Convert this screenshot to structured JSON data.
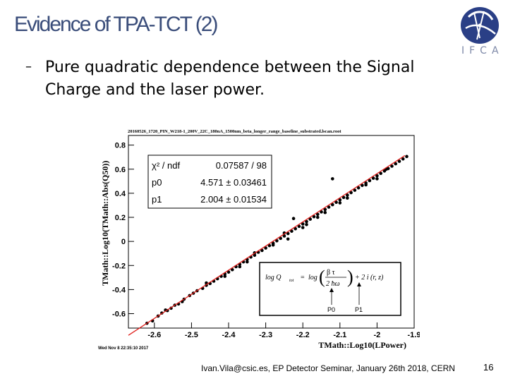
{
  "slide": {
    "title": "Evidence of TPA-TCT (2)",
    "bullet": "Pure quadratic dependence between the Signal Charge and the laser power.",
    "footer": "Ivan.Vila@csic.es, EP Detector Seminar, January 26th 2018, CERN",
    "page_number": "16",
    "logo_text": "IFCA"
  },
  "chart_data": {
    "type": "scatter",
    "title": "20160526_1720_PIN_W218-1_200V_22C_180nA_1500nm_beta_longer_range_baseline_substrated.lscan.root",
    "xlabel": "TMath::Log10(LPower)",
    "ylabel": "TMath::Log10(TMath::Abs(Q50))",
    "xlim": [
      -2.67,
      -1.9
    ],
    "ylim": [
      -0.72,
      0.88
    ],
    "xticks": [
      "-2.6",
      "-2.5",
      "-2.4",
      "-2.3",
      "-2.2",
      "-2.1",
      "-2",
      "-1.9"
    ],
    "yticks": [
      "-0.6",
      "-0.4",
      "-0.2",
      "0",
      "0.2",
      "0.4",
      "0.6",
      "0.8"
    ],
    "fit": {
      "p0": 4.571,
      "p1": 2.004
    },
    "stats": [
      {
        "label": "χ² / ndf",
        "value": "0.07587 / 98"
      },
      {
        "label": "p0",
        "value": "4.571 ± 0.03461"
      },
      {
        "label": "p1",
        "value": "2.004 ± 0.01534"
      }
    ],
    "date_stamp": "Wed Nov  8 22:35:10 2017",
    "formula": {
      "lhs": "log Q",
      "lhs_sub": "tot",
      "num": "β τ",
      "den": "2 ħω",
      "tail": "+ 2 i (r, z)",
      "label_p0": "P0",
      "label_p1": "P1"
    },
    "points": [
      [
        -2.62,
        -0.68
      ],
      [
        -2.605,
        -0.66
      ],
      [
        -2.59,
        -0.62
      ],
      [
        -2.58,
        -0.595
      ],
      [
        -2.565,
        -0.575
      ],
      [
        -2.555,
        -0.555
      ],
      [
        -2.545,
        -0.53
      ],
      [
        -2.535,
        -0.52
      ],
      [
        -2.525,
        -0.5
      ],
      [
        -2.505,
        -0.45
      ],
      [
        -2.495,
        -0.43
      ],
      [
        -2.485,
        -0.41
      ],
      [
        -2.47,
        -0.39
      ],
      [
        -2.46,
        -0.365
      ],
      [
        -2.45,
        -0.35
      ],
      [
        -2.44,
        -0.33
      ],
      [
        -2.43,
        -0.31
      ],
      [
        -2.42,
        -0.29
      ],
      [
        -2.41,
        -0.27
      ],
      [
        -2.4,
        -0.255
      ],
      [
        -2.39,
        -0.235
      ],
      [
        -2.38,
        -0.21
      ],
      [
        -2.37,
        -0.19
      ],
      [
        -2.36,
        -0.17
      ],
      [
        -2.35,
        -0.15
      ],
      [
        -2.34,
        -0.13
      ],
      [
        -2.33,
        -0.115
      ],
      [
        -2.32,
        -0.09
      ],
      [
        -2.31,
        -0.075
      ],
      [
        -2.3,
        -0.055
      ],
      [
        -2.29,
        -0.035
      ],
      [
        -2.28,
        -0.015
      ],
      [
        -2.27,
        0.005
      ],
      [
        -2.26,
        0.025
      ],
      [
        -2.25,
        0.045
      ],
      [
        -2.24,
        0.065
      ],
      [
        -2.23,
        0.085
      ],
      [
        -2.22,
        0.105
      ],
      [
        -2.21,
        0.125
      ],
      [
        -2.2,
        0.145
      ],
      [
        -2.19,
        0.165
      ],
      [
        -2.18,
        0.185
      ],
      [
        -2.17,
        0.205
      ],
      [
        -2.16,
        0.225
      ],
      [
        -2.15,
        0.245
      ],
      [
        -2.14,
        0.265
      ],
      [
        -2.13,
        0.285
      ],
      [
        -2.12,
        0.305
      ],
      [
        -2.11,
        0.325
      ],
      [
        -2.1,
        0.345
      ],
      [
        -2.09,
        0.365
      ],
      [
        -2.08,
        0.385
      ],
      [
        -2.07,
        0.405
      ],
      [
        -2.06,
        0.425
      ],
      [
        -2.05,
        0.445
      ],
      [
        -2.04,
        0.465
      ],
      [
        -2.03,
        0.485
      ],
      [
        -2.02,
        0.505
      ],
      [
        -2.01,
        0.525
      ],
      [
        -2.0,
        0.545
      ],
      [
        -1.99,
        0.565
      ],
      [
        -1.98,
        0.585
      ],
      [
        -1.97,
        0.605
      ],
      [
        -1.96,
        0.625
      ],
      [
        -1.95,
        0.645
      ],
      [
        -1.94,
        0.665
      ],
      [
        -1.93,
        0.685
      ],
      [
        -1.92,
        0.705
      ],
      [
        -2.46,
        -0.345
      ],
      [
        -2.37,
        -0.21
      ],
      [
        -2.25,
        0.07
      ],
      [
        -2.19,
        0.14
      ],
      [
        -2.2,
        0.115
      ],
      [
        -2.16,
        0.2
      ],
      [
        -2.08,
        0.36
      ],
      [
        -2.33,
        -0.095
      ],
      [
        -2.28,
        -0.03
      ],
      [
        -2.41,
        -0.29
      ],
      [
        -2.52,
        -0.48
      ],
      [
        -2.57,
        -0.57
      ],
      [
        -2.03,
        0.47
      ],
      [
        -2.0,
        0.52
      ],
      [
        -1.975,
        0.6
      ],
      [
        -2.1,
        0.32
      ],
      [
        -2.12,
        0.52
      ],
      [
        -2.24,
        0.02
      ],
      [
        -2.35,
        -0.17
      ],
      [
        -2.225,
        0.19
      ],
      [
        -2.14,
        0.24
      ]
    ]
  }
}
